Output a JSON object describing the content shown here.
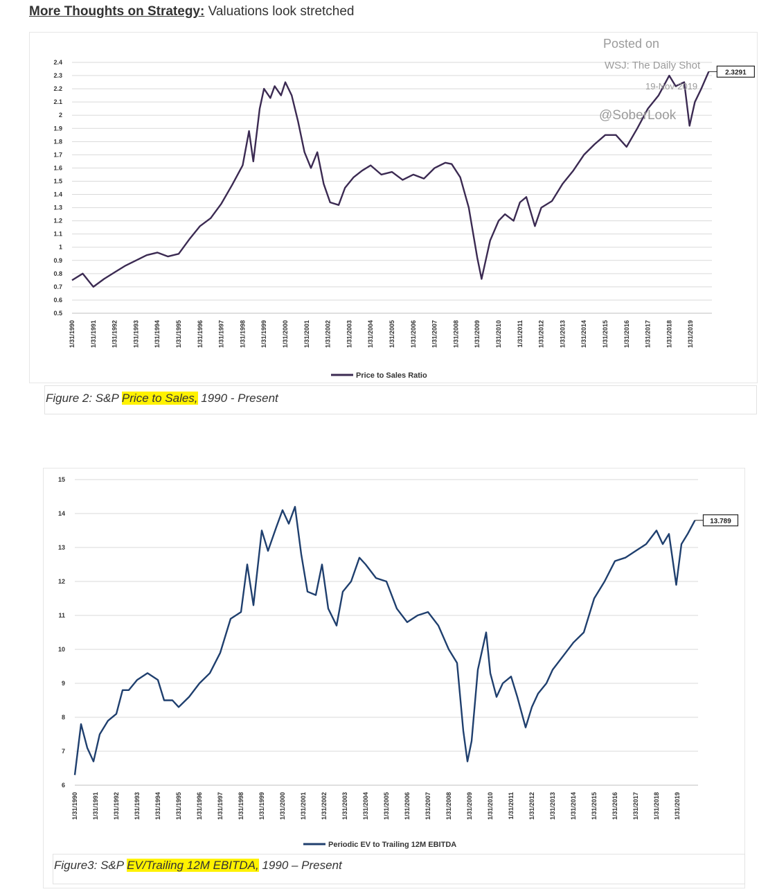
{
  "heading": {
    "lead": "More Thoughts on Strategy:",
    "rest": " Valuations look stretched"
  },
  "watermark": {
    "posted_on": "Posted on",
    "source": "WSJ: The Daily Shot",
    "date": "19-Nov-2019",
    "handle": "@SoberLook"
  },
  "figure2_caption": {
    "prefix": "Figure 2: S&P ",
    "highlight": "Price to Sales,",
    "suffix": " 1990 - Present"
  },
  "figure3_caption": {
    "prefix": "Figure3: S&P ",
    "highlight": "EV/Trailing 12M EBITDA,",
    "suffix": " 1990 – Present"
  },
  "colors": {
    "series1": "#3b2a52",
    "series2": "#1f3f6e",
    "highlight": "#fff200",
    "gridline": "#d9d9d9"
  },
  "chart_data": [
    {
      "type": "line",
      "ylim": [
        0.5,
        2.4
      ],
      "y_ticks": [
        "0.5",
        "0.6",
        "0.7",
        "0.8",
        "0.9",
        "1",
        "1.1",
        "1.2",
        "1.3",
        "1.4",
        "1.5",
        "1.6",
        "1.7",
        "1.8",
        "1.9",
        "2",
        "2.1",
        "2.2",
        "2.3",
        "2.4"
      ],
      "x_ticks": [
        "1/31/1990",
        "1/31/1991",
        "1/31/1992",
        "1/31/1993",
        "1/31/1994",
        "1/31/1995",
        "1/31/1996",
        "1/31/1997",
        "1/31/1998",
        "1/31/1999",
        "1/31/2000",
        "1/31/2001",
        "1/31/2002",
        "1/31/2003",
        "1/31/2004",
        "1/31/2005",
        "1/31/2006",
        "1/31/2007",
        "1/31/2008",
        "1/31/2009",
        "1/31/2010",
        "1/31/2011",
        "1/31/2012",
        "1/31/2013",
        "1/31/2014",
        "1/31/2015",
        "1/31/2016",
        "1/31/2017",
        "1/31/2018",
        "1/31/2019"
      ],
      "grid": true,
      "legend_position": "bottom",
      "end_label": "2.3291",
      "series": [
        {
          "name": "Price to Sales Ratio",
          "x": [
            1990.0,
            1990.5,
            1991.0,
            1991.5,
            1992.0,
            1992.5,
            1993.0,
            1993.5,
            1994.0,
            1994.5,
            1995.0,
            1995.5,
            1996.0,
            1996.5,
            1997.0,
            1997.5,
            1998.0,
            1998.3,
            1998.5,
            1998.8,
            1999.0,
            1999.3,
            1999.5,
            1999.8,
            2000.0,
            2000.3,
            2000.6,
            2000.9,
            2001.2,
            2001.5,
            2001.8,
            2002.1,
            2002.5,
            2002.8,
            2003.2,
            2003.6,
            2004.0,
            2004.5,
            2005.0,
            2005.5,
            2006.0,
            2006.5,
            2007.0,
            2007.5,
            2007.8,
            2008.2,
            2008.6,
            2009.0,
            2009.2,
            2009.6,
            2010.0,
            2010.3,
            2010.7,
            2011.0,
            2011.3,
            2011.7,
            2012.0,
            2012.5,
            2013.0,
            2013.5,
            2014.0,
            2014.5,
            2015.0,
            2015.5,
            2016.0,
            2016.5,
            2017.0,
            2017.5,
            2018.0,
            2018.3,
            2018.7,
            2018.95,
            2019.2,
            2019.5,
            2019.85
          ],
          "values": [
            0.75,
            0.8,
            0.7,
            0.76,
            0.81,
            0.86,
            0.9,
            0.94,
            0.96,
            0.93,
            0.95,
            1.06,
            1.16,
            1.22,
            1.33,
            1.47,
            1.62,
            1.88,
            1.65,
            2.05,
            2.2,
            2.13,
            2.22,
            2.15,
            2.25,
            2.15,
            1.95,
            1.72,
            1.6,
            1.72,
            1.48,
            1.34,
            1.32,
            1.45,
            1.53,
            1.58,
            1.62,
            1.55,
            1.57,
            1.51,
            1.55,
            1.52,
            1.6,
            1.64,
            1.63,
            1.53,
            1.3,
            0.92,
            0.76,
            1.05,
            1.2,
            1.25,
            1.2,
            1.34,
            1.38,
            1.16,
            1.3,
            1.35,
            1.48,
            1.58,
            1.7,
            1.78,
            1.85,
            1.85,
            1.76,
            1.9,
            2.05,
            2.15,
            2.3,
            2.22,
            2.25,
            1.92,
            2.1,
            2.2,
            2.33
          ]
        }
      ]
    },
    {
      "type": "line",
      "ylim": [
        6,
        15
      ],
      "y_ticks": [
        "6",
        "7",
        "8",
        "9",
        "10",
        "11",
        "12",
        "13",
        "14",
        "15"
      ],
      "x_ticks": [
        "1/31/1990",
        "1/31/1991",
        "1/31/1992",
        "1/31/1993",
        "1/31/1994",
        "1/31/1995",
        "1/31/1996",
        "1/31/1997",
        "1/31/1998",
        "1/31/1999",
        "1/31/2000",
        "1/31/2001",
        "1/31/2002",
        "1/31/2003",
        "1/31/2004",
        "1/31/2005",
        "1/31/2006",
        "1/31/2007",
        "1/31/2008",
        "1/31/2009",
        "1/31/2010",
        "1/31/2011",
        "1/31/2012",
        "1/31/2013",
        "1/31/2014",
        "1/31/2015",
        "1/31/2016",
        "1/31/2017",
        "1/31/2018",
        "1/31/2019"
      ],
      "grid": true,
      "legend_position": "bottom",
      "end_label": "13.789",
      "series": [
        {
          "name": "Periodic EV to Trailing 12M EBITDA",
          "x": [
            1990.0,
            1990.3,
            1990.6,
            1990.9,
            1991.2,
            1991.6,
            1992.0,
            1992.3,
            1992.6,
            1993.0,
            1993.5,
            1994.0,
            1994.3,
            1994.7,
            1995.0,
            1995.5,
            1996.0,
            1996.5,
            1997.0,
            1997.5,
            1998.0,
            1998.3,
            1998.6,
            1999.0,
            1999.3,
            1999.7,
            2000.0,
            2000.3,
            2000.6,
            2000.9,
            2001.2,
            2001.6,
            2001.9,
            2002.2,
            2002.6,
            2002.9,
            2003.3,
            2003.7,
            2004.0,
            2004.5,
            2005.0,
            2005.5,
            2006.0,
            2006.5,
            2007.0,
            2007.5,
            2008.0,
            2008.4,
            2008.7,
            2008.9,
            2009.1,
            2009.4,
            2009.8,
            2010.0,
            2010.3,
            2010.6,
            2011.0,
            2011.3,
            2011.7,
            2012.0,
            2012.3,
            2012.7,
            2013.0,
            2013.5,
            2014.0,
            2014.5,
            2015.0,
            2015.5,
            2016.0,
            2016.5,
            2017.0,
            2017.5,
            2018.0,
            2018.3,
            2018.6,
            2018.95,
            2019.2,
            2019.5,
            2019.85
          ],
          "values": [
            6.3,
            7.8,
            7.1,
            6.7,
            7.5,
            7.9,
            8.1,
            8.8,
            8.8,
            9.1,
            9.3,
            9.1,
            8.5,
            8.5,
            8.3,
            8.6,
            9.0,
            9.3,
            9.9,
            10.9,
            11.1,
            12.5,
            11.3,
            13.5,
            12.9,
            13.6,
            14.1,
            13.7,
            14.2,
            12.8,
            11.7,
            11.6,
            12.5,
            11.2,
            10.7,
            11.7,
            12.0,
            12.7,
            12.5,
            12.1,
            12.0,
            11.2,
            10.8,
            11.0,
            11.1,
            10.7,
            10.0,
            9.6,
            7.6,
            6.7,
            7.3,
            9.4,
            10.5,
            9.3,
            8.6,
            9.0,
            9.2,
            8.6,
            7.7,
            8.3,
            8.7,
            9.0,
            9.4,
            9.8,
            10.2,
            10.5,
            11.5,
            12.0,
            12.6,
            12.7,
            12.9,
            13.1,
            13.5,
            13.1,
            13.4,
            11.9,
            13.1,
            13.4,
            13.8
          ]
        }
      ]
    }
  ]
}
